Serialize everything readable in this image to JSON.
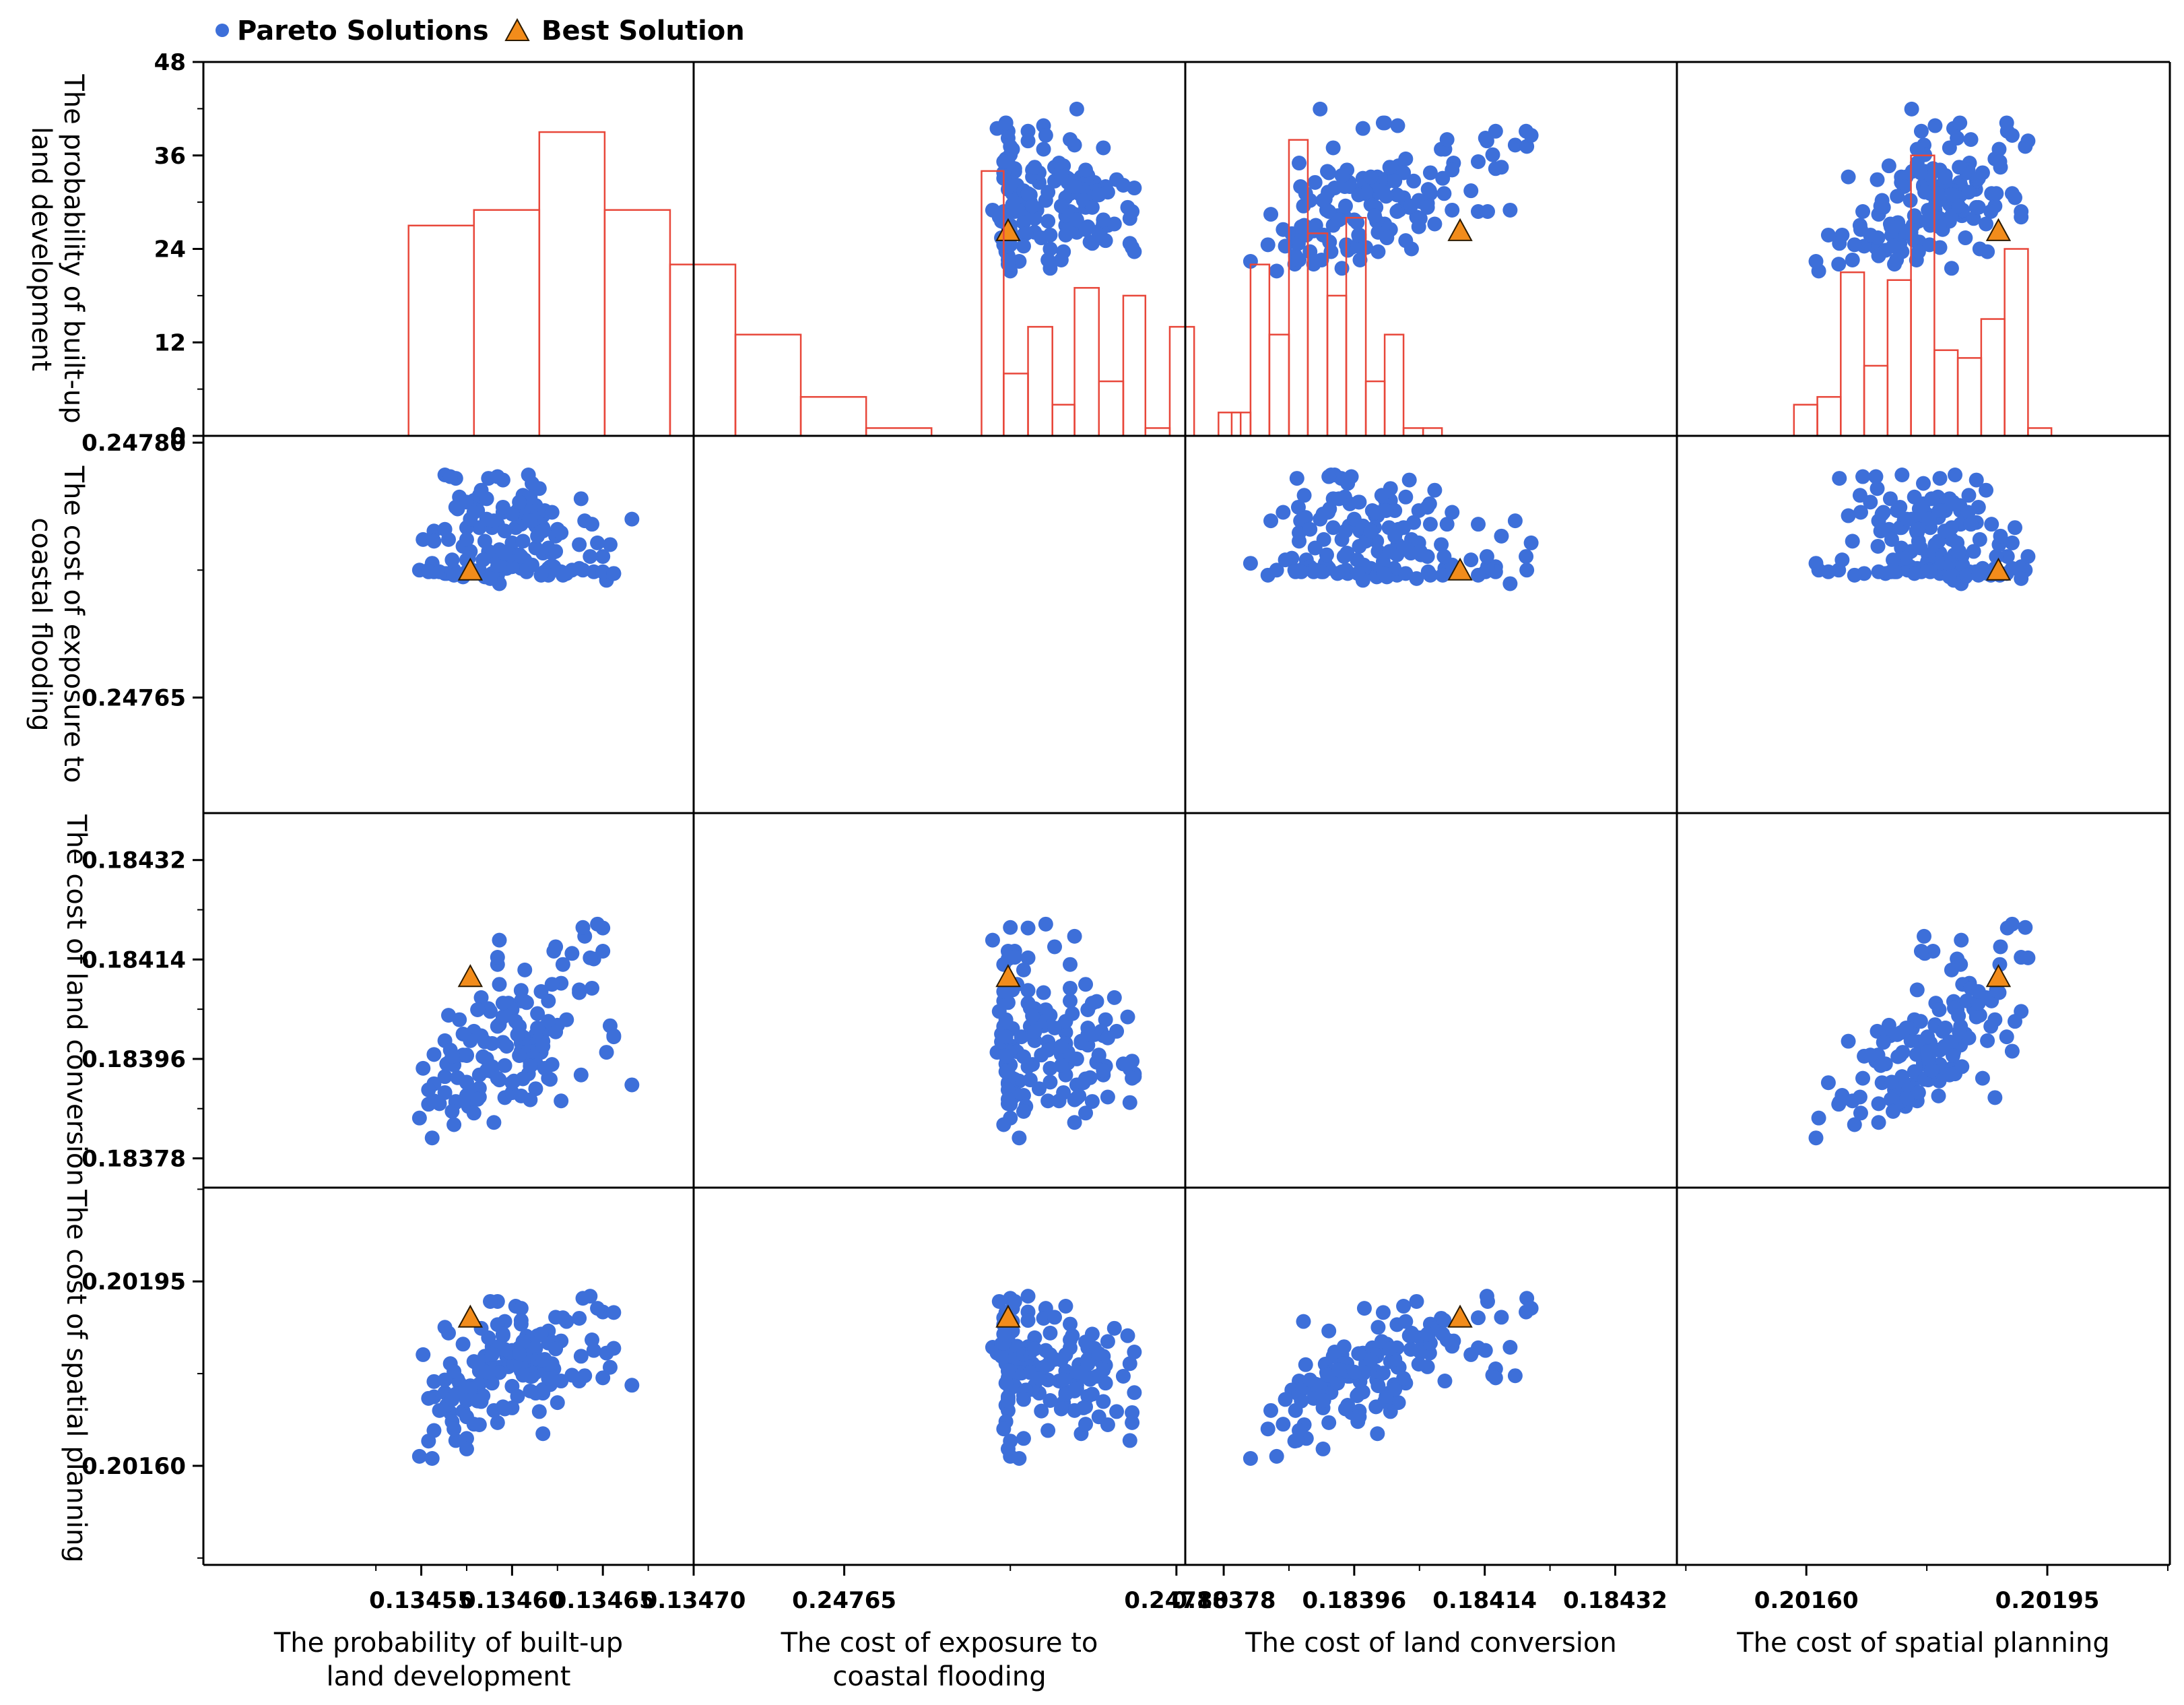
{
  "chart_data": {
    "type": "scatter-matrix",
    "legend": {
      "position": "top-left",
      "items": [
        {
          "label": "Pareto Solutions",
          "marker": "circle",
          "color": "#3d6fd9"
        },
        {
          "label": "Best Solution",
          "marker": "triangle",
          "color": "#f28c1b"
        }
      ]
    },
    "variables": [
      {
        "key": "p",
        "name": "The probability of built-up land development",
        "row_label_lines": [
          "The probability of built-up",
          "land development"
        ],
        "col_label_lines": [
          "The probability of built-up",
          "land development"
        ],
        "range": [
          0.13443,
          0.1347
        ],
        "ticks": [
          0.13455,
          0.1346,
          0.13465,
          0.1347
        ],
        "tick_labels": [
          "0.13455",
          "0.13460",
          "0.13465",
          "0.13470"
        ]
      },
      {
        "key": "f",
        "name": "The cost of exposure to coastal flooding",
        "row_label_lines": [
          "The cost of exposure to",
          "coastal flooding"
        ],
        "col_label_lines": [
          "The cost of exposure to",
          "coastal flooding"
        ],
        "range": [
          0.247582,
          0.247804
        ],
        "ticks": [
          0.24765,
          0.2478
        ],
        "tick_labels": [
          "0.24765",
          "0.24780"
        ]
      },
      {
        "key": "l",
        "name": "The cost of land conversion",
        "row_label_lines": [
          "The cost of land conversion"
        ],
        "col_label_lines": [
          "The cost of land conversion"
        ],
        "range": [
          0.183727,
          0.184405
        ],
        "ticks": [
          0.18378,
          0.18396,
          0.18414,
          0.18432
        ],
        "tick_labels": [
          "0.18378",
          "0.18396",
          "0.18414",
          "0.18432"
        ]
      },
      {
        "key": "s",
        "name": "The cost of spatial planning",
        "row_label_lines": [
          "The cost of spatial planning"
        ],
        "col_label_lines": [
          "The cost of spatial planning"
        ],
        "range": [
          0.201412,
          0.202128
        ],
        "ticks": [
          0.2016,
          0.20195
        ],
        "tick_labels": [
          "0.20160",
          "0.20195"
        ]
      }
    ],
    "histogram_y_axis": {
      "range": [
        0,
        48
      ],
      "ticks": [
        0,
        12,
        24,
        36,
        48
      ],
      "tick_labels": [
        "0",
        "12",
        "24",
        "36",
        "48"
      ]
    },
    "histograms": {
      "p": {
        "bins": [
          [
            0.134543,
            0.134579
          ],
          [
            0.134579,
            0.134615
          ],
          [
            0.134615,
            0.134651
          ],
          [
            0.134651,
            0.134687
          ],
          [
            0.134687,
            0.134723
          ],
          [
            0.134723,
            0.134759
          ],
          [
            0.134759,
            0.134795
          ],
          [
            0.134795,
            0.134831
          ]
        ],
        "counts": [
          27,
          29,
          39,
          29,
          22,
          13,
          5,
          1
        ]
      },
      "f": {
        "bins": [
          [
            0.247712,
            0.247722
          ],
          [
            0.247722,
            0.247733
          ],
          [
            0.247733,
            0.247744
          ],
          [
            0.247744,
            0.247754
          ],
          [
            0.247754,
            0.247765
          ],
          [
            0.247765,
            0.247776
          ],
          [
            0.247776,
            0.247786
          ],
          [
            0.247786,
            0.247797
          ],
          [
            0.247797,
            0.247808
          ],
          [
            0.247808,
            0.247819
          ],
          [
            0.247819,
            0.247829
          ]
        ],
        "counts": [
          34,
          8,
          14,
          4,
          19,
          7,
          18,
          1,
          14,
          0,
          3
        ]
      },
      "l": {
        "bins": [
          [
            0.183791,
            0.183817
          ],
          [
            0.183817,
            0.183843
          ],
          [
            0.183843,
            0.18387
          ],
          [
            0.18387,
            0.183896
          ],
          [
            0.183896,
            0.183923
          ],
          [
            0.183923,
            0.183949
          ],
          [
            0.183949,
            0.183976
          ],
          [
            0.183976,
            0.184002
          ],
          [
            0.184002,
            0.184028
          ],
          [
            0.184028,
            0.184055
          ],
          [
            0.184055,
            0.184081
          ]
        ],
        "counts": [
          3,
          22,
          13,
          38,
          26,
          18,
          28,
          7,
          13,
          1,
          1
        ]
      },
      "s": {
        "bins": [
          [
            0.201582,
            0.201616
          ],
          [
            0.201616,
            0.20165
          ],
          [
            0.20165,
            0.201684
          ],
          [
            0.201684,
            0.201718
          ],
          [
            0.201718,
            0.201752
          ],
          [
            0.201752,
            0.201786
          ],
          [
            0.201786,
            0.20182
          ],
          [
            0.20182,
            0.201854
          ],
          [
            0.201854,
            0.201888
          ],
          [
            0.201888,
            0.201922
          ],
          [
            0.201922,
            0.201956
          ]
        ],
        "counts": [
          4,
          5,
          21,
          9,
          20,
          36,
          11,
          10,
          15,
          24,
          1
        ]
      }
    },
    "best_solution": {
      "p": 0.134577,
      "f": 0.247724,
      "l": 0.184106,
      "s": 0.201879
    },
    "pareto_solutions": {
      "p": [
        0.134571,
        0.134623,
        0.134563,
        0.134617,
        0.134596,
        0.134563,
        0.13464,
        0.134551,
        0.134617,
        0.13462,
        0.134652,
        0.13457,
        0.134593,
        0.134616,
        0.134645,
        0.134585,
        0.134557,
        0.134622,
        0.134633,
        0.134565,
        0.134625,
        0.134638,
        0.134592,
        0.134615,
        0.134579,
        0.134613,
        0.134583,
        0.134593,
        0.134577,
        0.134566,
        0.134587,
        0.134637,
        0.134605,
        0.134621,
        0.134609,
        0.13465,
        0.134549,
        0.1346,
        0.134554,
        0.134613,
        0.134597,
        0.134611,
        0.134575,
        0.134602,
        0.134598,
        0.134605,
        0.134613,
        0.134666,
        0.134575,
        0.134618,
        0.134601,
        0.134611,
        0.134639,
        0.134617,
        0.134569,
        0.134606,
        0.134556,
        0.134621,
        0.13461,
        0.134582,
        0.134593,
        0.134605,
        0.134589,
        0.134582,
        0.134608,
        0.134611,
        0.134566,
        0.134557,
        0.1346,
        0.13461,
        0.13463,
        0.134592,
        0.134568,
        0.134654,
        0.13465,
        0.134573,
        0.134582,
        0.134587,
        0.134578,
        0.134584,
        0.134606,
        0.134564,
        0.134656,
        0.134607,
        0.134618,
        0.134627,
        0.134583,
        0.134647,
        0.134573,
        0.134595,
        0.134585,
        0.134592,
        0.134605,
        0.134557,
        0.134637,
        0.134589,
        0.134643,
        0.134604,
        0.134595,
        0.134622,
        0.134606,
        0.134588,
        0.13462,
        0.134593,
        0.134607,
        0.134599,
        0.134614,
        0.134605,
        0.134624,
        0.134614,
        0.134656,
        0.134554,
        0.134627,
        0.134606,
        0.134589,
        0.13456,
        0.134644,
        0.13461,
        0.134603,
        0.134576,
        0.134575,
        0.134586,
        0.13459,
        0.134569,
        0.134617,
        0.134581,
        0.1346,
        0.134577,
        0.134586,
        0.134596,
        0.134567,
        0.134596,
        0.13462,
        0.134575,
        0.134595,
        0.134604,
        0.134628,
        0.134616,
        0.134581,
        0.134624,
        0.134568,
        0.134575,
        0.134579,
        0.134567,
        0.134592,
        0.134563
      ],
      "f": [
        0.247768,
        0.247727,
        0.247781,
        0.247757,
        0.247726,
        0.247723,
        0.247754,
        0.247743,
        0.24775,
        0.247726,
        0.247719,
        0.247761,
        0.247737,
        0.247751,
        0.247724,
        0.247742,
        0.247748,
        0.247735,
        0.247725,
        0.247743,
        0.247749,
        0.247767,
        0.247722,
        0.247773,
        0.247766,
        0.247751,
        0.247767,
        0.247717,
        0.247736,
        0.247723,
        0.247779,
        0.247726,
        0.247757,
        0.247726,
        0.247781,
        0.247724,
        0.247725,
        0.247741,
        0.247725,
        0.247763,
        0.247726,
        0.24776,
        0.247731,
        0.24775,
        0.247733,
        0.247726,
        0.247738,
        0.247755,
        0.247724,
        0.24776,
        0.247729,
        0.247776,
        0.247725,
        0.247735,
        0.247779,
        0.24773,
        0.247729,
        0.247727,
        0.247764,
        0.247769,
        0.247734,
        0.247752,
        0.247733,
        0.247725,
        0.247724,
        0.247728,
        0.24778,
        0.247724,
        0.247727,
        0.247768,
        0.247723,
        0.247752,
        0.247725,
        0.24774,
        0.247733,
        0.247721,
        0.24775,
        0.247736,
        0.247725,
        0.247731,
        0.247742,
        0.247723,
        0.247723,
        0.247764,
        0.247724,
        0.247724,
        0.247772,
        0.247741,
        0.247739,
        0.247759,
        0.247721,
        0.247727,
        0.247756,
        0.247742,
        0.24774,
        0.247723,
        0.247733,
        0.247734,
        0.247778,
        0.247759,
        0.247759,
        0.24772,
        0.247738,
        0.247728,
        0.247731,
        0.247734,
        0.247753,
        0.247733,
        0.247745,
        0.247745,
        0.247723,
        0.247724,
        0.247747,
        0.247769,
        0.24775,
        0.247724,
        0.247752,
        0.247754,
        0.24776,
        0.247732,
        0.24775,
        0.247767,
        0.247754,
        0.247762,
        0.247748,
        0.24776,
        0.247758,
        0.247755,
        0.247755,
        0.247735,
        0.247723,
        0.247748,
        0.247722,
        0.247743,
        0.247762,
        0.247765,
        0.247722,
        0.247722,
        0.247724,
        0.247736,
        0.247722,
        0.247765,
        0.247759,
        0.247731,
        0.24778,
        0.247749
      ],
      "l": [
        0.184031,
        0.184155,
        0.183928,
        0.183992,
        0.18389,
        0.183993,
        0.184182,
        0.183943,
        0.184008,
        0.183925,
        0.183972,
        0.183926,
        0.184022,
        0.183972,
        0.184141,
        0.183991,
        0.183968,
        0.18395,
        0.184151,
        0.184039,
        0.184021,
        0.183931,
        0.184019,
        0.18401,
        0.18401,
        0.183953,
        0.184002,
        0.184175,
        0.183993,
        0.183976,
        0.183942,
        0.184085,
        0.183989,
        0.184015,
        0.183933,
        0.184155,
        0.183853,
        0.184049,
        0.183878,
        0.184004,
        0.183983,
        0.183985,
        0.183894,
        0.184028,
        0.184061,
        0.183974,
        0.183906,
        0.183913,
        0.183917,
        0.184016,
        0.18392,
        0.183951,
        0.184198,
        0.184016,
        0.183881,
        0.184,
        0.183817,
        0.183923,
        0.183954,
        0.183891,
        0.183922,
        0.184065,
        0.183946,
        0.183907,
        0.184062,
        0.183973,
        0.183956,
        0.183915,
        0.183899,
        0.183947,
        0.184031,
        0.184131,
        0.183949,
        0.18402,
        0.184197,
        0.184005,
        0.183931,
        0.184051,
        0.183904,
        0.183964,
        0.183976,
        0.183951,
        0.184002,
        0.184064,
        0.183943,
        0.184097,
        0.184071,
        0.184204,
        0.183967,
        0.18399,
        0.183991,
        0.184144,
        0.183893,
        0.183884,
        0.18408,
        0.183937,
        0.184143,
        0.184019,
        0.184036,
        0.184095,
        0.183924,
        0.184046,
        0.184028,
        0.184095,
        0.184121,
        0.184052,
        0.184042,
        0.184084,
        0.184163,
        0.184016,
        0.184,
        0.183904,
        0.183884,
        0.183998,
        0.183988,
        0.183879,
        0.184088,
        0.183886,
        0.184004,
        0.183874,
        0.183966,
        0.183939,
        0.183845,
        0.183883,
        0.183983,
        0.184049,
        0.183917,
        0.183889,
        0.18396,
        0.184038,
        0.183965,
        0.183948,
        0.184065,
        0.183918,
        0.184061,
        0.183966,
        0.184131,
        0.184082,
        0.183887,
        0.184009,
        0.183841,
        0.183967,
        0.183862,
        0.183865,
        0.183925,
        0.183899
      ],
      "s": [
        0.201757,
        0.201784,
        0.201739,
        0.201661,
        0.201874,
        0.201863,
        0.201771,
        0.201811,
        0.201738,
        0.201856,
        0.201814,
        0.201764,
        0.201787,
        0.20174,
        0.201819,
        0.201763,
        0.20176,
        0.201794,
        0.201772,
        0.201852,
        0.20172,
        0.201808,
        0.201868,
        0.201703,
        0.201798,
        0.201777,
        0.201722,
        0.201825,
        0.201752,
        0.201794,
        0.201794,
        0.201761,
        0.20178,
        0.201754,
        0.201816,
        0.201767,
        0.201618,
        0.201819,
        0.201647,
        0.201823,
        0.201808,
        0.201824,
        0.201652,
        0.201903,
        0.201788,
        0.201899,
        0.201738,
        0.201753,
        0.201632,
        0.201802,
        0.201793,
        0.20177,
        0.201918,
        0.201745,
        0.201648,
        0.201776,
        0.201614,
        0.201772,
        0.20177,
        0.201678,
        0.201777,
        0.201869,
        0.201826,
        0.201755,
        0.201846,
        0.201776,
        0.201701,
        0.201731,
        0.201751,
        0.201791,
        0.201874,
        0.201824,
        0.201779,
        0.201787,
        0.201892,
        0.201831,
        0.20178,
        0.201843,
        0.201747,
        0.201733,
        0.201792,
        0.201715,
        0.201823,
        0.201814,
        0.20178,
        0.201837,
        0.201861,
        0.201899,
        0.201704,
        0.201712,
        0.201808,
        0.201912,
        0.201792,
        0.201667,
        0.20188,
        0.201757,
        0.201922,
        0.201824,
        0.201847,
        0.201835,
        0.201772,
        0.201912,
        0.201766,
        0.201827,
        0.201811,
        0.201815,
        0.201847,
        0.201876,
        0.201882,
        0.201802,
        0.201891,
        0.201728,
        0.201761,
        0.201836,
        0.201811,
        0.201705,
        0.201839,
        0.201742,
        0.201732,
        0.201744,
        0.201736,
        0.201782,
        0.201705,
        0.201736,
        0.201801,
        0.201793,
        0.20171,
        0.201746,
        0.201778,
        0.201821,
        0.201684,
        0.201708,
        0.201833,
        0.201724,
        0.20185,
        0.201813,
        0.201881,
        0.20185,
        0.201723,
        0.201822,
        0.20167,
        0.201693,
        0.201679,
        0.201726,
        0.201682,
        0.201763
      ]
    }
  }
}
